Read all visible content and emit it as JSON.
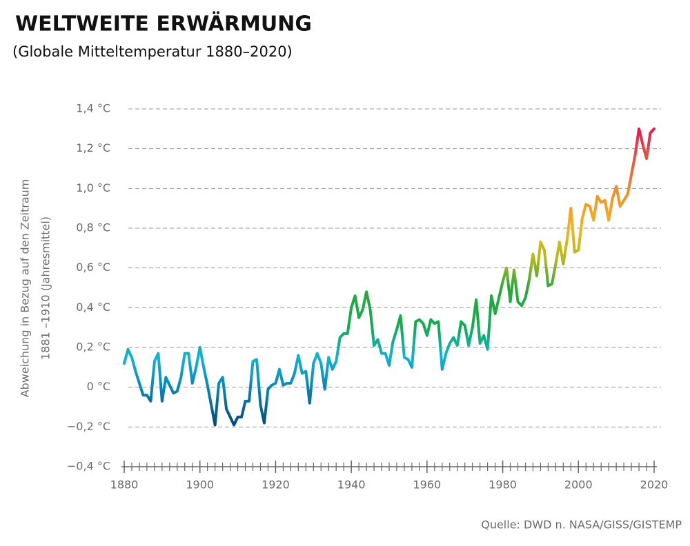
{
  "chart_data": {
    "type": "line",
    "title": "WELTWEITE ERWÄRMUNG",
    "subtitle": "(Globale Mitteltemperatur 1880–2020)",
    "y_label": [
      "Abweichung in Bezug auf den Zeitraum",
      "1881 –1910 (Jahresmittel)"
    ],
    "source": "Quelle: DWD n. NASA/GISS/GISTEMP",
    "xlim": [
      1880,
      2020
    ],
    "xticks": [
      1880,
      1900,
      1920,
      1940,
      1960,
      1980,
      2000,
      2020
    ],
    "ylim": [
      -0.4,
      1.4
    ],
    "yticks": [
      {
        "value": -0.4,
        "label": "−0,4 °C"
      },
      {
        "value": -0.2,
        "label": "−0,2 °C"
      },
      {
        "value": 0,
        "label": "0 °C"
      },
      {
        "value": 0.2,
        "label": "0,2 °C"
      },
      {
        "value": 0.4,
        "label": "0,4 °C"
      },
      {
        "value": 0.6,
        "label": "0,6 °C"
      },
      {
        "value": 0.8,
        "label": "0,8 °C"
      },
      {
        "value": 1.0,
        "label": "1,0 °C"
      },
      {
        "value": 1.2,
        "label": "1,2 °C"
      },
      {
        "value": 1.4,
        "label": "1,4 °C"
      }
    ],
    "grid": true,
    "color_scale": [
      {
        "value": -0.2,
        "color": "#004a7c"
      },
      {
        "value": 0.0,
        "color": "#0a86b8"
      },
      {
        "value": 0.15,
        "color": "#12b2d8"
      },
      {
        "value": 0.3,
        "color": "#10ad50"
      },
      {
        "value": 0.5,
        "color": "#2ca83a"
      },
      {
        "value": 0.65,
        "color": "#b5b91c"
      },
      {
        "value": 0.8,
        "color": "#f2b51c"
      },
      {
        "value": 1.0,
        "color": "#f28a2a"
      },
      {
        "value": 1.3,
        "color": "#e8184f"
      }
    ],
    "x": [
      1880,
      1881,
      1882,
      1883,
      1884,
      1885,
      1886,
      1887,
      1888,
      1889,
      1890,
      1891,
      1892,
      1893,
      1894,
      1895,
      1896,
      1897,
      1898,
      1899,
      1900,
      1901,
      1902,
      1903,
      1904,
      1905,
      1906,
      1907,
      1908,
      1909,
      1910,
      1911,
      1912,
      1913,
      1914,
      1915,
      1916,
      1917,
      1918,
      1919,
      1920,
      1921,
      1922,
      1923,
      1924,
      1925,
      1926,
      1927,
      1928,
      1929,
      1930,
      1931,
      1932,
      1933,
      1934,
      1935,
      1936,
      1937,
      1938,
      1939,
      1940,
      1941,
      1942,
      1943,
      1944,
      1945,
      1946,
      1947,
      1948,
      1949,
      1950,
      1951,
      1952,
      1953,
      1954,
      1955,
      1956,
      1957,
      1958,
      1959,
      1960,
      1961,
      1962,
      1963,
      1964,
      1965,
      1966,
      1967,
      1968,
      1969,
      1970,
      1971,
      1972,
      1973,
      1974,
      1975,
      1976,
      1977,
      1978,
      1979,
      1980,
      1981,
      1982,
      1983,
      1984,
      1985,
      1986,
      1987,
      1988,
      1989,
      1990,
      1991,
      1992,
      1993,
      1994,
      1995,
      1996,
      1997,
      1998,
      1999,
      2000,
      2001,
      2002,
      2003,
      2004,
      2005,
      2006,
      2007,
      2008,
      2009,
      2010,
      2011,
      2012,
      2013,
      2014,
      2015,
      2016,
      2017,
      2018,
      2019,
      2020
    ],
    "series": [
      {
        "values": [
          0.12,
          0.19,
          0.15,
          0.08,
          0.02,
          -0.04,
          -0.04,
          -0.07,
          0.13,
          0.17,
          -0.07,
          0.05,
          0.01,
          -0.03,
          -0.02,
          0.05,
          0.17,
          0.17,
          0.02,
          0.1,
          0.2,
          0.1,
          0.01,
          -0.09,
          -0.19,
          0.02,
          0.05,
          -0.11,
          -0.15,
          -0.19,
          -0.15,
          -0.15,
          -0.07,
          -0.07,
          0.13,
          0.14,
          -0.09,
          -0.18,
          -0.01,
          0.01,
          0.02,
          0.09,
          0.01,
          0.02,
          0.02,
          0.07,
          0.16,
          0.07,
          0.08,
          -0.08,
          0.12,
          0.17,
          0.12,
          -0.01,
          0.15,
          0.09,
          0.13,
          0.25,
          0.27,
          0.27,
          0.4,
          0.46,
          0.35,
          0.39,
          0.48,
          0.39,
          0.21,
          0.24,
          0.17,
          0.17,
          0.11,
          0.23,
          0.29,
          0.36,
          0.15,
          0.14,
          0.1,
          0.33,
          0.34,
          0.32,
          0.26,
          0.34,
          0.32,
          0.33,
          0.09,
          0.17,
          0.22,
          0.25,
          0.21,
          0.33,
          0.31,
          0.21,
          0.3,
          0.44,
          0.22,
          0.26,
          0.19,
          0.46,
          0.37,
          0.45,
          0.53,
          0.6,
          0.43,
          0.59,
          0.43,
          0.41,
          0.45,
          0.54,
          0.67,
          0.56,
          0.73,
          0.69,
          0.51,
          0.52,
          0.62,
          0.73,
          0.62,
          0.74,
          0.9,
          0.68,
          0.69,
          0.85,
          0.92,
          0.91,
          0.84,
          0.96,
          0.93,
          0.94,
          0.84,
          0.95,
          1.01,
          0.91,
          0.94,
          0.97,
          1.07,
          1.17,
          1.3,
          1.22,
          1.15,
          1.28,
          1.3
        ]
      }
    ]
  }
}
